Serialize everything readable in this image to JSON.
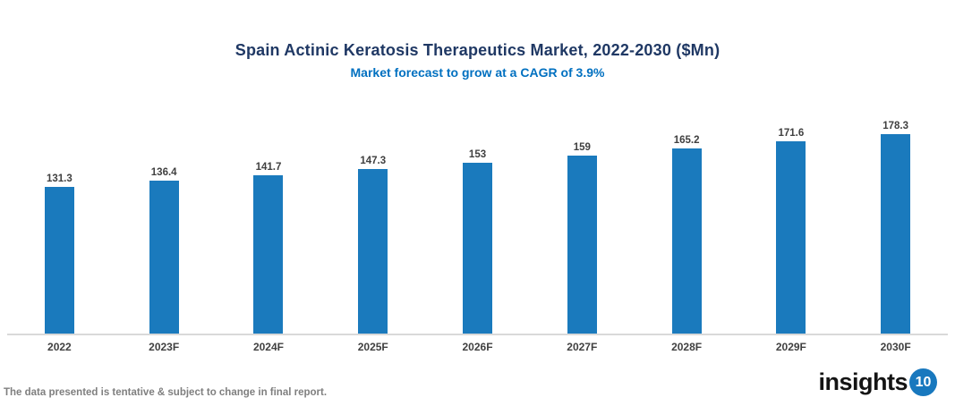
{
  "header": {
    "title": "Spain Actinic Keratosis Therapeutics Market, 2022-2030 ($Mn)",
    "subtitle": "Market forecast to grow at a CAGR of 3.9%"
  },
  "chart_data": {
    "type": "bar",
    "title": "Spain Actinic Keratosis Therapeutics Market, 2022-2030 ($Mn)",
    "subtitle": "Market forecast to grow at a CAGR of 3.9%",
    "categories": [
      "2022",
      "2023F",
      "2024F",
      "2025F",
      "2026F",
      "2027F",
      "2028F",
      "2029F",
      "2030F"
    ],
    "values": [
      131.3,
      136.4,
      141.7,
      147.3,
      153,
      159,
      165.2,
      171.6,
      178.3
    ],
    "value_labels": [
      "131.3",
      "136.4",
      "141.7",
      "147.3",
      "153",
      "159",
      "165.2",
      "171.6",
      "178.3"
    ],
    "xlabel": "",
    "ylabel": "",
    "ylim": [
      0,
      195
    ],
    "grid": false,
    "legend": "none",
    "bar_color": "#1a7abd",
    "axis_line_color": "#d9d9d9"
  },
  "footer": {
    "disclaimer": "The data presented is tentative & subject to change in final report.",
    "logo_text": "insights",
    "logo_badge": "10",
    "logo_badge_color": "#1878be"
  }
}
